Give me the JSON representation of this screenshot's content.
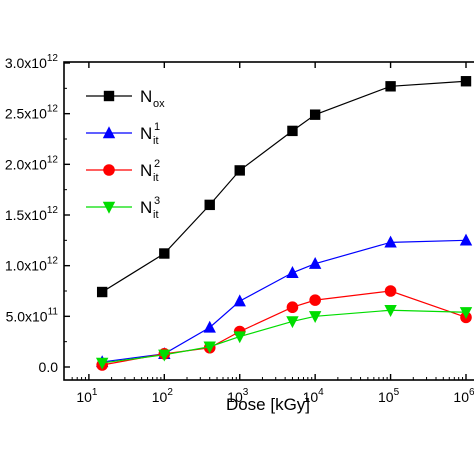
{
  "chart_data": {
    "type": "line",
    "xlabel": "Dose [kGy]",
    "ylabel": "",
    "x_scale": "log",
    "xlim": [
      10,
      1000000
    ],
    "ylim": [
      0,
      2900000000000.0
    ],
    "grid": false,
    "legend_position": "top-left",
    "x_ticks": [
      {
        "value": 10,
        "base": "10",
        "exp": "1"
      },
      {
        "value": 100,
        "base": "10",
        "exp": "2"
      },
      {
        "value": 1000,
        "base": "10",
        "exp": "3"
      },
      {
        "value": 10000,
        "base": "10",
        "exp": "4"
      },
      {
        "value": 100000,
        "base": "10",
        "exp": "5"
      },
      {
        "value": 1000000,
        "base": "10",
        "exp": "6"
      }
    ],
    "y_ticks": [
      {
        "value": 0,
        "mant": "0.0",
        "exp": ""
      },
      {
        "value": 500000000000.0,
        "mant": "5.0x10",
        "exp": "11"
      },
      {
        "value": 1000000000000.0,
        "mant": "1.0x10",
        "exp": "12"
      },
      {
        "value": 1500000000000.0,
        "mant": "1.5x10",
        "exp": "12"
      },
      {
        "value": 2000000000000.0,
        "mant": "2.0x10",
        "exp": "12"
      },
      {
        "value": 2500000000000.0,
        "mant": "2.5x10",
        "exp": "12"
      },
      {
        "value": 3000000000000.0,
        "mant": "3.0x10",
        "exp": "12"
      }
    ],
    "x": [
      15,
      100,
      400,
      1000,
      5000,
      10000,
      100000,
      1000000
    ],
    "series": [
      {
        "name": "N_ox",
        "label_main": "N",
        "label_sub": "ox",
        "label_sup": "",
        "color": "#000000",
        "marker": "square",
        "values": [
          740000000000.0,
          1120000000000.0,
          1600000000000.0,
          1940000000000.0,
          2330000000000.0,
          2490000000000.0,
          2770000000000.0,
          2820000000000.0
        ]
      },
      {
        "name": "N_it^1",
        "label_main": "N",
        "label_sub": "it",
        "label_sup": "1",
        "color": "#0000ff",
        "marker": "triangle-up",
        "values": [
          50000000000.0,
          130000000000.0,
          390000000000.0,
          650000000000.0,
          930000000000.0,
          1020000000000.0,
          1230000000000.0,
          1250000000000.0
        ]
      },
      {
        "name": "N_it^2",
        "label_main": "N",
        "label_sub": "it",
        "label_sup": "2",
        "color": "#ff0000",
        "marker": "circle",
        "values": [
          20000000000.0,
          130000000000.0,
          190000000000.0,
          350000000000.0,
          590000000000.0,
          660000000000.0,
          750000000000.0,
          490000000000.0
        ]
      },
      {
        "name": "N_it^3",
        "label_main": "N",
        "label_sub": "it",
        "label_sup": "3",
        "color": "#00dd00",
        "marker": "triangle-down",
        "values": [
          40000000000.0,
          120000000000.0,
          200000000000.0,
          300000000000.0,
          450000000000.0,
          500000000000.0,
          560000000000.0,
          540000000000.0
        ]
      }
    ]
  }
}
